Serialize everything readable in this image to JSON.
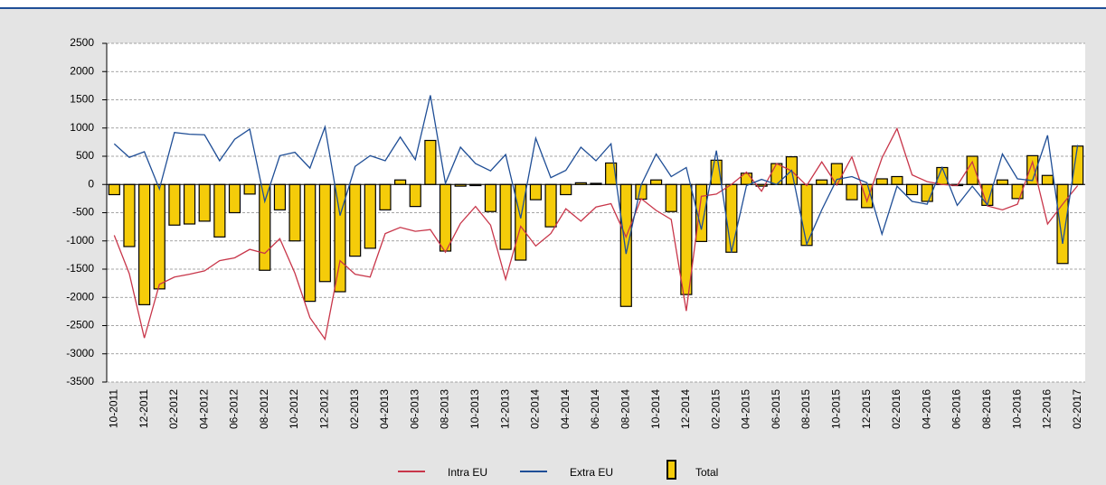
{
  "chart_data": {
    "type": "bar-line",
    "categories": [
      "10-2011",
      null,
      "12-2011",
      null,
      "02-2012",
      null,
      "04-2012",
      null,
      "06-2012",
      null,
      "08-2012",
      null,
      "10-2012",
      null,
      "12-2012",
      null,
      "02-2013",
      null,
      "04-2013",
      null,
      "06-2013",
      null,
      "08-2013",
      null,
      "10-2013",
      null,
      "12-2013",
      null,
      "02-2014",
      null,
      "04-2014",
      null,
      "06-2014",
      null,
      "08-2014",
      null,
      "10-2014",
      null,
      "12-2014",
      null,
      "02-2015",
      null,
      "04-2015",
      null,
      "06-2015",
      null,
      "08-2015",
      null,
      "10-2015",
      null,
      "12-2015",
      null,
      "02-2016",
      null,
      "04-2016",
      null,
      "06-2016",
      null,
      "08-2016",
      null,
      "10-2016",
      null,
      "12-2016",
      null,
      "02-2017"
    ],
    "series": [
      {
        "name": "Intra EU",
        "type": "line",
        "color": "#c8364a",
        "values": [
          -900,
          -1580,
          -2720,
          -1770,
          -1640,
          -1590,
          -1530,
          -1350,
          -1300,
          -1150,
          -1220,
          -960,
          -1570,
          -2360,
          -2740,
          -1350,
          -1590,
          -1640,
          -870,
          -760,
          -830,
          -800,
          -1200,
          -690,
          -390,
          -720,
          -1680,
          -740,
          -1090,
          -870,
          -430,
          -650,
          -400,
          -340,
          -930,
          -250,
          -460,
          -620,
          -2240,
          -210,
          -170,
          0,
          220,
          -120,
          370,
          240,
          -20,
          400,
          -10,
          490,
          -300,
          470,
          990,
          170,
          50,
          0,
          -20,
          400,
          -380,
          -450,
          -350,
          400,
          -700,
          -350,
          -20
        ]
      },
      {
        "name": "Extra EU",
        "type": "line",
        "color": "#1f4e96",
        "values": [
          720,
          480,
          580,
          -80,
          920,
          890,
          880,
          420,
          800,
          980,
          -300,
          510,
          570,
          290,
          1020,
          -550,
          320,
          510,
          420,
          840,
          440,
          1580,
          20,
          660,
          370,
          240,
          530,
          -600,
          820,
          120,
          250,
          660,
          420,
          720,
          -1230,
          -10,
          540,
          140,
          300,
          -800,
          600,
          -1200,
          -20,
          90,
          0,
          250,
          -1060,
          -450,
          90,
          140,
          30,
          -880,
          -30,
          -300,
          -350,
          300,
          -370,
          -30,
          -360,
          540,
          100,
          70,
          870,
          -1050,
          700
        ]
      },
      {
        "name": "Total",
        "type": "bar",
        "color": "#f5cc0a",
        "values": [
          -180,
          -1100,
          -2130,
          -1850,
          -720,
          -700,
          -650,
          -930,
          -500,
          -170,
          -1520,
          -450,
          -1000,
          -2070,
          -1720,
          -1900,
          -1270,
          -1130,
          -450,
          80,
          -390,
          780,
          -1180,
          -30,
          -20,
          -480,
          -1150,
          -1340,
          -270,
          -750,
          -180,
          30,
          20,
          380,
          -2160,
          -260,
          80,
          -480,
          -1950,
          -1010,
          430,
          -1200,
          200,
          -30,
          370,
          490,
          -1080,
          80,
          370,
          -270,
          -410,
          100,
          140,
          -180,
          -300,
          300,
          -20,
          500,
          -370,
          80,
          -250,
          510,
          160,
          -1400,
          680
        ]
      }
    ],
    "ylim": [
      -3500,
      2500
    ],
    "yticks": [
      -3500,
      -3000,
      -2500,
      -2000,
      -1500,
      -1000,
      -500,
      0,
      500,
      1000,
      1500,
      2000,
      2500
    ],
    "grid": true
  }
}
